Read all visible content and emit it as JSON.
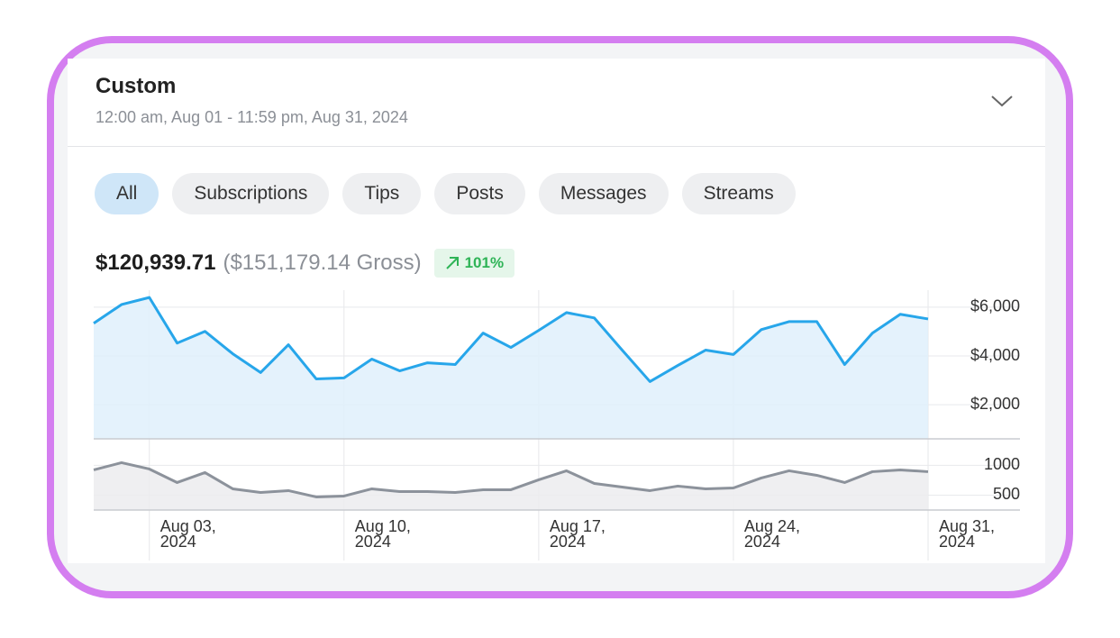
{
  "header": {
    "title": "Custom",
    "subtitle": "12:00 am, Aug 01 - 11:59 pm, Aug 31, 2024"
  },
  "tabs": [
    "All",
    "Subscriptions",
    "Tips",
    "Posts",
    "Messages",
    "Streams"
  ],
  "summary": {
    "net": "$120,939.71",
    "gross": "($151,179.14 Gross)",
    "change": "101%"
  },
  "chart_data": [
    {
      "type": "area",
      "color": "#27a6ea",
      "fill": "#dff0fc",
      "values": [
        5340,
        6110,
        6400,
        4530,
        5010,
        4090,
        3320,
        4460,
        3060,
        3100,
        3870,
        3390,
        3720,
        3650,
        4940,
        4350,
        5050,
        5780,
        5560,
        4240,
        2950,
        3610,
        4240,
        4060,
        5080,
        5410,
        5410,
        3650,
        4940,
        5710,
        5520
      ],
      "ylim": [
        600,
        6700
      ],
      "yticks": [
        {
          "value": 2000,
          "label": "$2,000"
        },
        {
          "value": 4000,
          "label": "$4,000"
        },
        {
          "value": 6000,
          "label": "$6,000"
        }
      ],
      "grid": true
    },
    {
      "type": "area",
      "color": "#8c929b",
      "fill": "#ececee",
      "categories": [
        null,
        null,
        "Aug 03, 2024",
        null,
        null,
        null,
        null,
        null,
        null,
        "Aug 10, 2024",
        null,
        null,
        null,
        null,
        null,
        null,
        "Aug 17, 2024",
        null,
        null,
        null,
        null,
        null,
        null,
        "Aug 24, 2024",
        null,
        null,
        null,
        null,
        null,
        null,
        "Aug 31, 2024"
      ],
      "values": [
        924,
        1045,
        939,
        712,
        879,
        606,
        545,
        576,
        470,
        485,
        606,
        561,
        561,
        545,
        591,
        591,
        758,
        909,
        697,
        636,
        576,
        652,
        606,
        621,
        788,
        909,
        833,
        712,
        894,
        924,
        894
      ],
      "ylim": [
        250,
        1400
      ],
      "yticks": [
        500,
        1000
      ],
      "grid": true
    }
  ]
}
